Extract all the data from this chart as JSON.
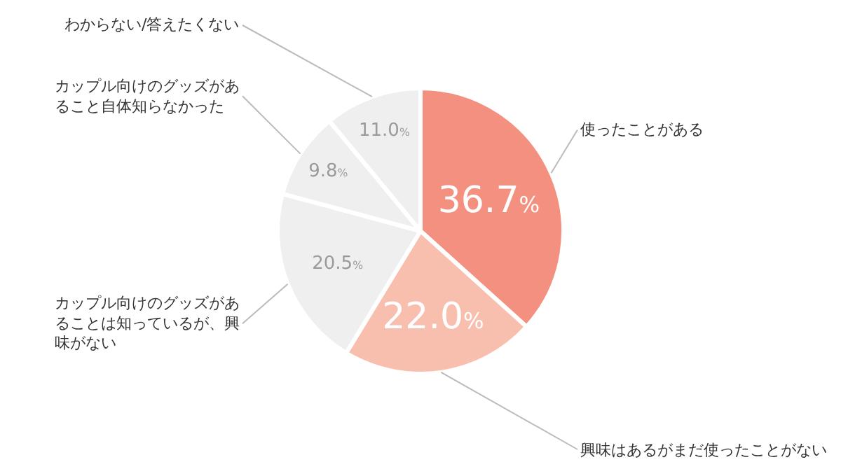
{
  "chart_data": {
    "type": "pie",
    "categories": [
      "使ったことがある",
      "興味はあるがまだ使ったことがない",
      "カップル向けのグッズがあることは知っているが、興味がない",
      "カップル向けのグッズがあること自体知らなかった",
      "わからない/答えたくない"
    ],
    "values": [
      36.7,
      22.0,
      20.5,
      9.8,
      11.0
    ],
    "colors": [
      "#f4907f",
      "#f9bfae",
      "#efefef",
      "#efefef",
      "#efefef"
    ],
    "value_labels": [
      "36.7%",
      "22.0%",
      "20.5%",
      "9.8%",
      "11.0%"
    ],
    "legend": false
  }
}
